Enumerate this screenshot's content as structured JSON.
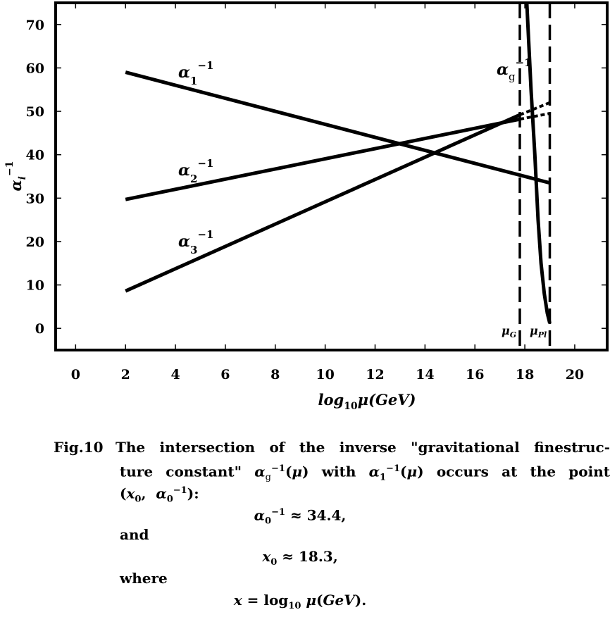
{
  "chart_data": {
    "type": "line",
    "xlabel": "log10μ(GeV)",
    "ylabel": "α_i^-1",
    "xlim": [
      -0.8,
      21.3
    ],
    "ylim": [
      -5,
      75
    ],
    "xticks": [
      0,
      2,
      4,
      6,
      8,
      10,
      12,
      14,
      16,
      18,
      20
    ],
    "yticks": [
      0,
      10,
      20,
      30,
      40,
      50,
      60,
      70
    ],
    "series": [
      {
        "name": "α1^-1",
        "key": "a1",
        "points": [
          [
            2,
            59
          ],
          [
            19,
            33.5
          ]
        ]
      },
      {
        "name": "α2^-1",
        "key": "a2",
        "points": [
          [
            2,
            29.7
          ],
          [
            17.8,
            48.2
          ]
        ],
        "dotted_extension": [
          [
            17.8,
            48.2
          ],
          [
            19,
            49.5
          ]
        ]
      },
      {
        "name": "α3^-1",
        "key": "a3",
        "points": [
          [
            2,
            8.6
          ],
          [
            17.8,
            49.2
          ]
        ],
        "dotted_extension": [
          [
            17.8,
            49.2
          ],
          [
            19,
            52
          ]
        ]
      },
      {
        "name": "αg^-1",
        "key": "ag",
        "points": [
          [
            18.08,
            75
          ],
          [
            18.25,
            55
          ],
          [
            18.4,
            40
          ],
          [
            18.53,
            25
          ],
          [
            18.65,
            15
          ],
          [
            18.78,
            8
          ],
          [
            18.9,
            3.5
          ],
          [
            19,
            1.2
          ]
        ]
      }
    ],
    "vlines": [
      {
        "x": 17.8,
        "label": "μ_G"
      },
      {
        "x": 19.0,
        "label": "μ_Pl"
      }
    ],
    "grid": false
  },
  "caption": {
    "lines": [
      "Fig.10 The intersection of the inverse \"gravitational finestruc-",
      "ture constant\" αg^-1(μ) with α1^-1(μ) occurs at the point",
      "(x0, α0^-1):",
      "α0^-1 ≈ 34.4,",
      "and",
      "x0 ≈ 18.3,",
      "where",
      "x = log10μ(GeV)."
    ]
  }
}
